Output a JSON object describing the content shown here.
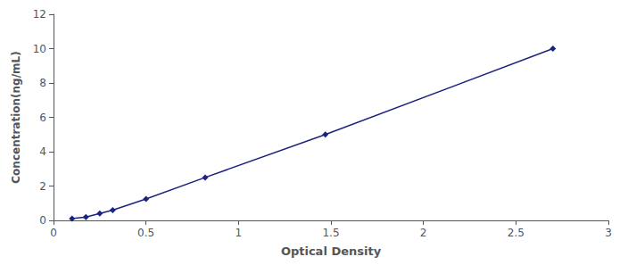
{
  "chart_data": {
    "type": "line",
    "x": [
      0.1,
      0.175,
      0.25,
      0.32,
      0.5,
      0.82,
      1.47,
      2.7
    ],
    "values": [
      0.1,
      0.2,
      0.4,
      0.6,
      1.25,
      2.5,
      5.0,
      10.0
    ],
    "color": "#1a237e",
    "marker": "diamond",
    "line_style": "solid",
    "xlabel": "Optical Density",
    "ylabel": "Concentration(ng/mL)",
    "xlim": [
      0,
      3
    ],
    "ylim": [
      0,
      12
    ],
    "xticks": [
      0,
      0.5,
      1,
      1.5,
      2,
      2.5,
      3
    ],
    "yticks": [
      0,
      2,
      4,
      6,
      8,
      10,
      12
    ],
    "grid": false
  }
}
